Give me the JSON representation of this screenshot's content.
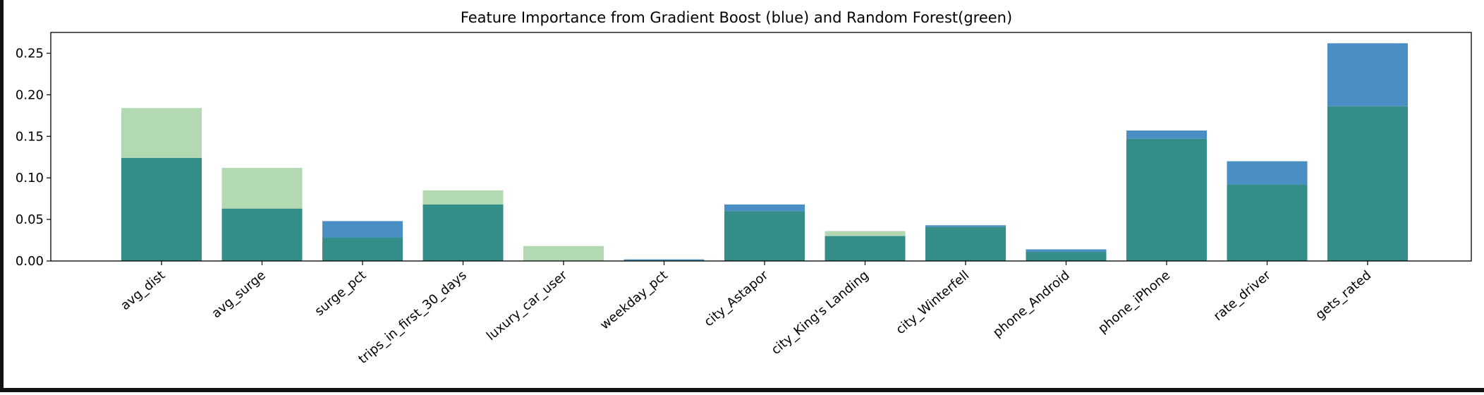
{
  "chart_data": {
    "type": "bar",
    "title": "Feature Importance from Gradient Boost (blue) and Random Forest(green)",
    "xlabel": "",
    "ylabel": "",
    "ylim": [
      0,
      0.275
    ],
    "yticks": [
      "0.00",
      "0.05",
      "0.10",
      "0.15",
      "0.20",
      "0.25"
    ],
    "categories": [
      "avg_dist",
      "avg_surge",
      "surge_pct",
      "trips_in_first_30_days",
      "luxury_car_user",
      "weekday_pct",
      "city_Astapor",
      "city_King's Landing",
      "city_Winterfell",
      "phone_Android",
      "phone_iPhone",
      "rate_driver",
      "gets_rated"
    ],
    "series": [
      {
        "color": "#4a8fc4",
        "values": [
          0.124,
          0.063,
          0.048,
          0.068,
          0.0,
          0.002,
          0.068,
          0.03,
          0.043,
          0.014,
          0.157,
          0.12,
          0.262
        ]
      },
      {
        "color": "#b3d9b3",
        "values": [
          0.184,
          0.112,
          0.028,
          0.085,
          0.018,
          0.001,
          0.06,
          0.036,
          0.041,
          0.011,
          0.147,
          0.092,
          0.186
        ]
      }
    ],
    "overlap_color": "#358d8a",
    "grid": false,
    "legend": "none"
  }
}
